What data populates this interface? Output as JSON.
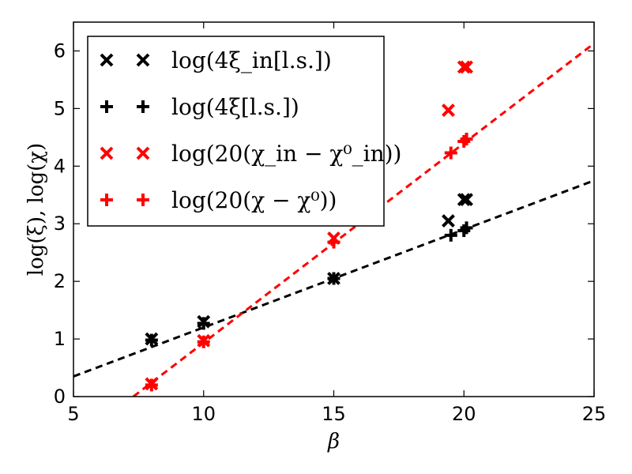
{
  "chart_data": {
    "type": "scatter",
    "xlabel": "β",
    "ylabel": "log(ξ), log(χ)",
    "xlim": [
      5,
      25
    ],
    "ylim": [
      0,
      6.5
    ],
    "xticks": [
      "5",
      "10",
      "15",
      "20",
      "25"
    ],
    "yticks": [
      "0",
      "1",
      "2",
      "3",
      "4",
      "5",
      "6"
    ],
    "grid": false,
    "legend_position": "top-left",
    "series": [
      {
        "name": "log(4ξ_in[l.s.])",
        "marker": "x",
        "color": "#000000",
        "points": [
          [
            8,
            1.0
          ],
          [
            10,
            1.3
          ],
          [
            15,
            2.05
          ],
          [
            19.4,
            3.05
          ],
          [
            20,
            3.42
          ],
          [
            20.1,
            3.42
          ]
        ]
      },
      {
        "name": "log(4ξ[l.s.])",
        "marker": "+",
        "color": "#000000",
        "points": [
          [
            8,
            0.98
          ],
          [
            10,
            1.27
          ],
          [
            15,
            2.05
          ],
          [
            19.5,
            2.8
          ],
          [
            20,
            2.88
          ],
          [
            20.1,
            2.93
          ]
        ]
      },
      {
        "name": "log(20(χ_in − χ⁰_in))",
        "marker": "x",
        "color": "#ff0000",
        "points": [
          [
            8,
            0.22
          ],
          [
            10,
            0.97
          ],
          [
            15,
            2.75
          ],
          [
            19.4,
            4.97
          ],
          [
            20,
            5.72
          ],
          [
            20.1,
            5.72
          ]
        ]
      },
      {
        "name": "log(20(χ − χ⁰))",
        "marker": "+",
        "color": "#ff0000",
        "points": [
          [
            8,
            0.2
          ],
          [
            10,
            0.95
          ],
          [
            15,
            2.68
          ],
          [
            19.5,
            4.23
          ],
          [
            20,
            4.43
          ],
          [
            20.1,
            4.47
          ]
        ]
      }
    ],
    "fit_lines": [
      {
        "color": "#000000",
        "x": [
          5,
          25
        ],
        "y": [
          0.35,
          3.75
        ]
      },
      {
        "color": "#ff0000",
        "x": [
          7.3,
          25
        ],
        "y": [
          0.0,
          6.13
        ]
      }
    ]
  }
}
